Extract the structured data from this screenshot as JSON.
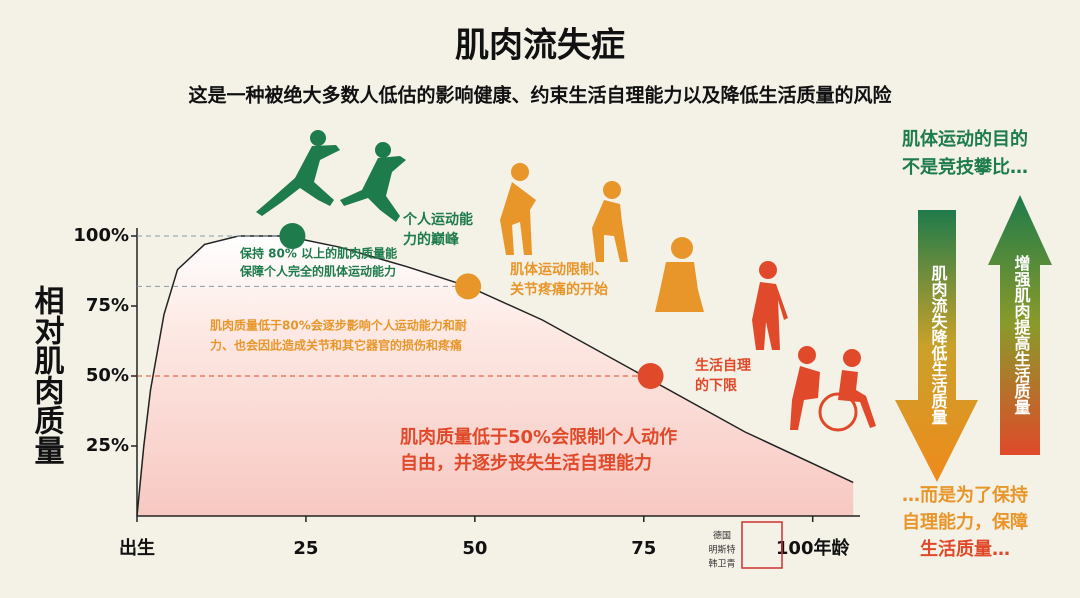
{
  "chart_data": {
    "type": "line",
    "title": "肌肉流失症",
    "subtitle": "这是一种被绝大多数人低估的影响健康、约束生活自理能力以及降低生活质量的风险",
    "y_label": "相对肌肉质量",
    "x": [
      0,
      1,
      2,
      4,
      6,
      10,
      15,
      22,
      30,
      40,
      49,
      60,
      75,
      90,
      106
    ],
    "series": [
      {
        "values": [
          0,
          25,
          45,
          72,
          88,
          97,
          100,
          100,
          96,
          89,
          82,
          70,
          50,
          30,
          12
        ],
        "color": "#222222"
      }
    ],
    "xlim": [
      0,
      107
    ],
    "ylim": [
      0,
      100
    ],
    "xticks": [
      {
        "value": 0,
        "label": "出生"
      },
      25,
      50,
      75,
      {
        "value": 100,
        "label": "100年龄"
      }
    ],
    "yticks": [
      {
        "value": 25,
        "label": "25%"
      },
      {
        "value": 50,
        "label": "50%"
      },
      {
        "value": 75,
        "label": "75%"
      },
      {
        "value": 100,
        "label": "100%"
      }
    ],
    "highlights": [
      {
        "x": 23,
        "y": 100,
        "color": "#1e7b4b",
        "label": [
          "个人运动能",
          "力的巅峰"
        ]
      },
      {
        "x": 49,
        "y": 82,
        "color": "#e8962a",
        "label": [
          "肌体运动限制、",
          "关节疼痛的开始"
        ]
      },
      {
        "x": 76,
        "y": 50,
        "color": "#e04a2a",
        "label": [
          "生活自理",
          "的下限"
        ]
      }
    ],
    "notes": [
      {
        "color": "#1e7b4b",
        "lines": [
          "保持 80% 以上的肌肉质量能",
          "保障个人完全的肌体运动能力"
        ]
      },
      {
        "color": "#e8962a",
        "lines": [
          "肌肉质量低于80%会逐步影响个人运动能力和耐",
          "力、也会因此造成关节和其它器官的损伤和疼痛"
        ]
      },
      {
        "color": "#e04a2a",
        "lines": [
          "肌肉质量低于50%会限制个人动作",
          "自由，并逐步丧失生活自理能力"
        ]
      }
    ],
    "side_top": [
      "肌体运动的目的",
      "不是竞技攀比…"
    ],
    "side_bottom": [
      "…而是为了保持",
      "自理能力，保障",
      "生活质量…"
    ],
    "arrow_down": "肌肉流失降低生活质量",
    "arrow_up": "增强肌肉提高生活质量",
    "seal": [
      "德国",
      "明斯特",
      "韩卫青"
    ]
  }
}
